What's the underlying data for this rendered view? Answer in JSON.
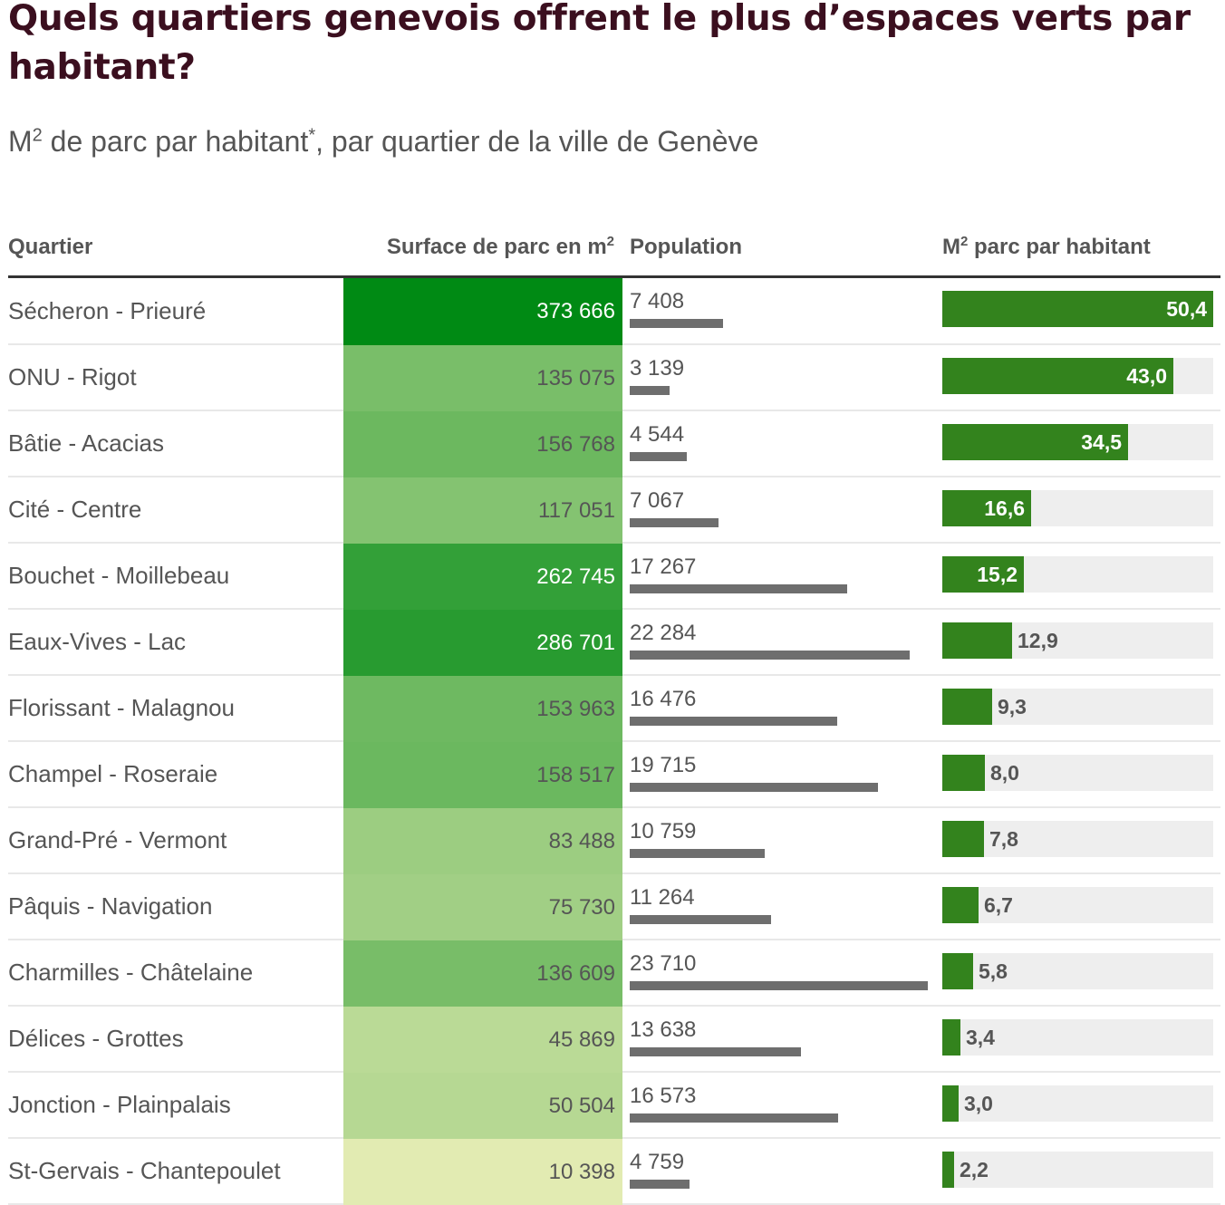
{
  "title": "Quels quartiers genevois offrent le plus d’espaces verts par habitant?",
  "subtitle": {
    "prefix": "M",
    "sup": "2",
    "text": " de parc par habitant",
    "star": "*",
    "suffix": ", par quartier de la ville de Genève"
  },
  "columns": {
    "quartier": "Quartier",
    "surface": "Surface de parc en m",
    "surface_sup": "2",
    "population": "Population",
    "ratio_prefix": "M",
    "ratio_sup": "2",
    "ratio": " parc par habitant"
  },
  "colors": {
    "title": "#3b0f1f",
    "ratio_bar": "#33831d",
    "population_bar": "#6e6e6e",
    "track": "#eeeeee"
  },
  "chart_data": {
    "type": "table",
    "rows": [
      {
        "quartier": "Sécheron - Prieuré",
        "surface": 373666,
        "surface_label": "373 666",
        "population": 7408,
        "population_label": "7 408",
        "ratio": 50.4,
        "ratio_label": "50,4"
      },
      {
        "quartier": "ONU - Rigot",
        "surface": 135075,
        "surface_label": "135 075",
        "population": 3139,
        "population_label": "3 139",
        "ratio": 43.0,
        "ratio_label": "43,0"
      },
      {
        "quartier": "Bâtie - Acacias",
        "surface": 156768,
        "surface_label": "156 768",
        "population": 4544,
        "population_label": "4 544",
        "ratio": 34.5,
        "ratio_label": "34,5"
      },
      {
        "quartier": "Cité - Centre",
        "surface": 117051,
        "surface_label": "117 051",
        "population": 7067,
        "population_label": "7 067",
        "ratio": 16.6,
        "ratio_label": "16,6"
      },
      {
        "quartier": "Bouchet - Moillebeau",
        "surface": 262745,
        "surface_label": "262 745",
        "population": 17267,
        "population_label": "17 267",
        "ratio": 15.2,
        "ratio_label": "15,2"
      },
      {
        "quartier": "Eaux-Vives - Lac",
        "surface": 286701,
        "surface_label": "286 701",
        "population": 22284,
        "population_label": "22 284",
        "ratio": 12.9,
        "ratio_label": "12,9"
      },
      {
        "quartier": "Florissant - Malagnou",
        "surface": 153963,
        "surface_label": "153 963",
        "population": 16476,
        "population_label": "16 476",
        "ratio": 9.3,
        "ratio_label": "9,3"
      },
      {
        "quartier": "Champel - Roseraie",
        "surface": 158517,
        "surface_label": "158 517",
        "population": 19715,
        "population_label": "19 715",
        "ratio": 8.0,
        "ratio_label": "8,0"
      },
      {
        "quartier": "Grand-Pré - Vermont",
        "surface": 83488,
        "surface_label": "83 488",
        "population": 10759,
        "population_label": "10 759",
        "ratio": 7.8,
        "ratio_label": "7,8"
      },
      {
        "quartier": "Pâquis - Navigation",
        "surface": 75730,
        "surface_label": "75 730",
        "population": 11264,
        "population_label": "11 264",
        "ratio": 6.7,
        "ratio_label": "6,7"
      },
      {
        "quartier": "Charmilles - Châtelaine",
        "surface": 136609,
        "surface_label": "136 609",
        "population": 23710,
        "population_label": "23 710",
        "ratio": 5.8,
        "ratio_label": "5,8"
      },
      {
        "quartier": "Délices - Grottes",
        "surface": 45869,
        "surface_label": "45 869",
        "population": 13638,
        "population_label": "13 638",
        "ratio": 3.4,
        "ratio_label": "3,4"
      },
      {
        "quartier": "Jonction - Plainpalais",
        "surface": 50504,
        "surface_label": "50 504",
        "population": 16573,
        "population_label": "16 573",
        "ratio": 3.0,
        "ratio_label": "3,0"
      },
      {
        "quartier": "St-Gervais - Chantepoulet",
        "surface": 10398,
        "surface_label": "10 398",
        "population": 4759,
        "population_label": "4 759",
        "ratio": 2.2,
        "ratio_label": "2,2"
      }
    ],
    "ratio_max": 50.4,
    "population_max": 23710,
    "surface_max": 373666
  }
}
